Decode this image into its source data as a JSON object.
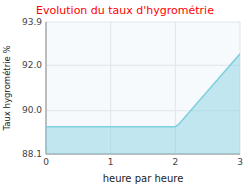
{
  "chart_data": {
    "type": "area",
    "title": "Evolution du taux d'hygrométrie",
    "x_label": "heure par heure",
    "y_label": "Taux hygrométrie %",
    "x": [
      0,
      1,
      2,
      2.05,
      3
    ],
    "values": [
      89.3,
      89.3,
      89.3,
      89.4,
      92.5
    ],
    "color": "#7ecfe0",
    "xlim": [
      0,
      3
    ],
    "ylim": [
      88.1,
      93.9
    ],
    "xticks": [
      0,
      1,
      2,
      3
    ],
    "yticks": [
      88.1,
      {
        "value": 90.0,
        "label": "90.0"
      },
      {
        "value": 92.0,
        "label": "92.0"
      },
      93.9
    ],
    "grid": true
  }
}
